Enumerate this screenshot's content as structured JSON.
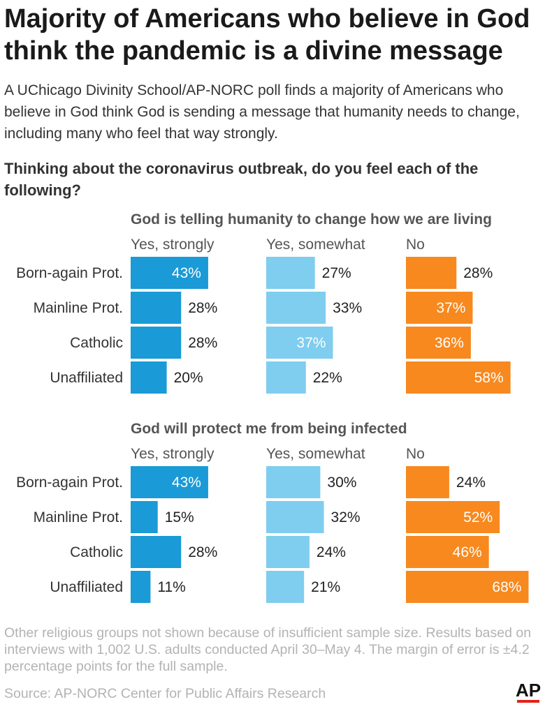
{
  "headline": "Majority of Americans who believe in God think the pandemic is a divine message",
  "intro": "A UChicago Divinity School/AP-NORC poll finds a majority of Americans who believe in God think God is sending a message that humanity needs to change, including many who feel that way strongly.",
  "question": "Thinking about the coronavirus outbreak, do you feel each of the following?",
  "chart_data": [
    {
      "type": "bar",
      "title": "God is telling humanity to change how we are living",
      "categories": [
        "Born-again Prot.",
        "Mainline Prot.",
        "Catholic",
        "Unaffiliated"
      ],
      "series": [
        {
          "name": "Yes, strongly",
          "values": [
            43,
            28,
            28,
            20
          ]
        },
        {
          "name": "Yes, somewhat",
          "values": [
            27,
            33,
            37,
            22
          ]
        },
        {
          "name": "No",
          "values": [
            28,
            37,
            36,
            58
          ]
        }
      ],
      "unit": "%",
      "xlim": [
        0,
        100
      ]
    },
    {
      "type": "bar",
      "title": "God will protect me from being infected",
      "categories": [
        "Born-again Prot.",
        "Mainline Prot.",
        "Catholic",
        "Unaffiliated"
      ],
      "series": [
        {
          "name": "Yes, strongly",
          "values": [
            43,
            15,
            28,
            11
          ]
        },
        {
          "name": "Yes, somewhat",
          "values": [
            30,
            32,
            24,
            21
          ]
        },
        {
          "name": "No",
          "values": [
            24,
            52,
            46,
            68
          ]
        }
      ],
      "unit": "%",
      "xlim": [
        0,
        100
      ]
    }
  ],
  "colors": {
    "strongly": "#1a9ad6",
    "somewhat": "#7fcdef",
    "no": "#f7891f",
    "inside_label": "#ffffff",
    "outside_label": "#222222"
  },
  "notes": "Other religious groups not shown because of insufficient sample size. Results based on interviews with 1,002 U.S. adults conducted April 30–May 4. The margin of error is ±4.2 percentage points for the full sample.",
  "source": "Source: AP-NORC Center for Public Affairs Research",
  "logo_text": "AP"
}
